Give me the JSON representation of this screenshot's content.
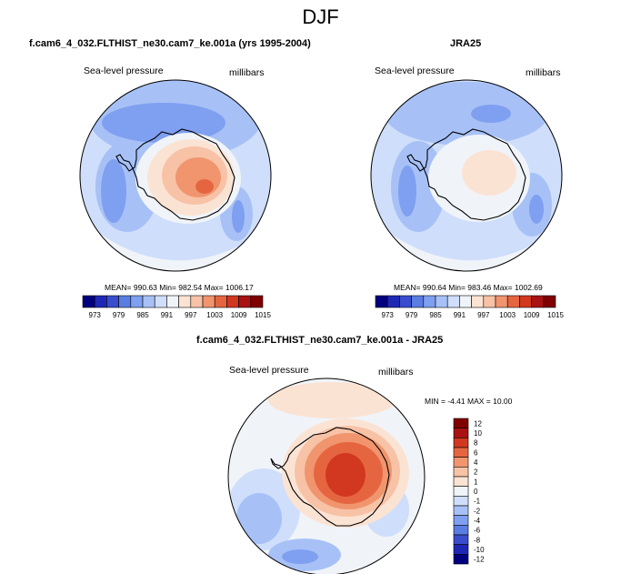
{
  "suptitle": "DJF",
  "colors": {
    "seq": [
      "#00007f",
      "#1f28b4",
      "#3a4dcd",
      "#5a7de2",
      "#7f9ff0",
      "#a7c1f7",
      "#cfdefa",
      "#f0f4f9",
      "#fbe3d4",
      "#f7c2a6",
      "#f0956e",
      "#e66541",
      "#d1381f",
      "#a81212",
      "#800000"
    ],
    "diff": [
      "#00007f",
      "#1f28b4",
      "#3a4dcd",
      "#5a7de2",
      "#7f9ff0",
      "#a7c1f7",
      "#cfdefa",
      "#f0f4f9",
      "#fbe3d4",
      "#f7c2a6",
      "#f0956e",
      "#e66541",
      "#d1381f",
      "#a81212",
      "#800000"
    ]
  },
  "panels": [
    {
      "title": "f.cam6_4_032.FLTHIST_ne30.cam7_ke.001a (yrs 1995-2004)",
      "left_label": "Sea-level pressure",
      "right_label": "millibars",
      "stats": "MEAN= 990.63  Min= 982.54  Max= 1006.17"
    },
    {
      "title": "JRA25",
      "left_label": "Sea-level pressure",
      "right_label": "millibars",
      "stats": "MEAN= 990.64  Min= 983.46  Max= 1002.69"
    },
    {
      "title": "f.cam6_4_032.FLTHIST_ne30.cam7_ke.001a - JRA25",
      "left_label": "Sea-level pressure",
      "right_label": "millibars",
      "stats": "MIN =  -4.41  MAX =  10.00"
    }
  ],
  "chart_data": [
    {
      "type": "heatmap",
      "title": "f.cam6_4_032.FLTHIST_ne30.cam7_ke.001a (yrs 1995-2004)",
      "variable": "Sea-level pressure",
      "units": "millibars",
      "projection": "south-polar stereographic",
      "mean": 990.63,
      "min": 982.54,
      "max": 1006.17,
      "colorbar_ticks": [
        "973",
        "979",
        "985",
        "991",
        "997",
        "1003",
        "1009",
        "1015"
      ],
      "colorbar_bins": 15
    },
    {
      "type": "heatmap",
      "title": "JRA25",
      "variable": "Sea-level pressure",
      "units": "millibars",
      "projection": "south-polar stereographic",
      "mean": 990.64,
      "min": 983.46,
      "max": 1002.69,
      "colorbar_ticks": [
        "973",
        "979",
        "985",
        "991",
        "997",
        "1003",
        "1009",
        "1015"
      ],
      "colorbar_bins": 15
    },
    {
      "type": "heatmap",
      "title": "f.cam6_4_032.FLTHIST_ne30.cam7_ke.001a - JRA25",
      "variable": "Sea-level pressure",
      "units": "millibars",
      "projection": "south-polar stereographic",
      "min": -4.41,
      "max": 10.0,
      "colorbar_ticks": [
        "12",
        "10",
        "8",
        "6",
        "4",
        "2",
        "1",
        "0",
        "-1",
        "-2",
        "-4",
        "-6",
        "-8",
        "-10",
        "-12"
      ],
      "colorbar_bins": 15
    }
  ]
}
